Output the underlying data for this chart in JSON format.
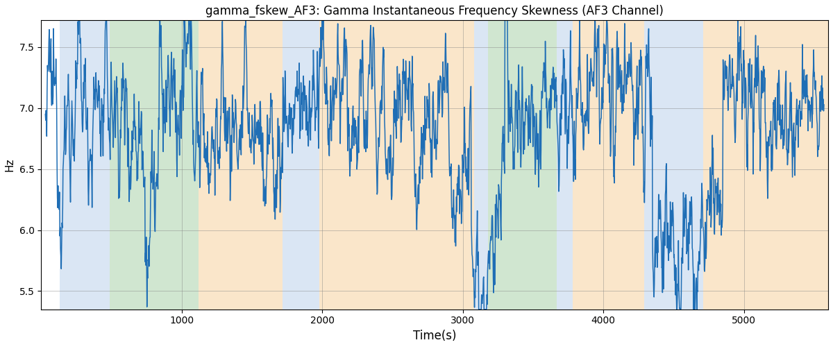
{
  "title": "gamma_fskew_AF3: Gamma Instantaneous Frequency Skewness (AF3 Channel)",
  "xlabel": "Time(s)",
  "ylabel": "Hz",
  "xlim": [
    0,
    5600
  ],
  "ylim": [
    5.35,
    7.72
  ],
  "yticks": [
    5.5,
    6.0,
    6.5,
    7.0,
    7.5
  ],
  "xticks": [
    1000,
    2000,
    3000,
    4000,
    5000
  ],
  "line_color": "#1f6eb5",
  "line_width": 1.1,
  "bg_regions": [
    {
      "start": 130,
      "end": 490,
      "color": "#adc8e8",
      "alpha": 0.45
    },
    {
      "start": 490,
      "end": 1120,
      "color": "#98c898",
      "alpha": 0.45
    },
    {
      "start": 1120,
      "end": 1720,
      "color": "#f5c88a",
      "alpha": 0.45
    },
    {
      "start": 1720,
      "end": 1980,
      "color": "#adc8e8",
      "alpha": 0.45
    },
    {
      "start": 1980,
      "end": 3080,
      "color": "#f5c88a",
      "alpha": 0.45
    },
    {
      "start": 3080,
      "end": 3180,
      "color": "#adc8e8",
      "alpha": 0.45
    },
    {
      "start": 3180,
      "end": 3670,
      "color": "#98c898",
      "alpha": 0.45
    },
    {
      "start": 3670,
      "end": 3780,
      "color": "#adc8e8",
      "alpha": 0.45
    },
    {
      "start": 3780,
      "end": 4290,
      "color": "#f5c88a",
      "alpha": 0.45
    },
    {
      "start": 4290,
      "end": 4710,
      "color": "#adc8e8",
      "alpha": 0.45
    },
    {
      "start": 4710,
      "end": 5600,
      "color": "#f5c88a",
      "alpha": 0.45
    }
  ],
  "seed": 12345,
  "n_points": 2200,
  "t_start": 30,
  "t_end": 5570,
  "base_level": 7.0,
  "noise_amp": 0.18,
  "mean_rev": 0.12
}
